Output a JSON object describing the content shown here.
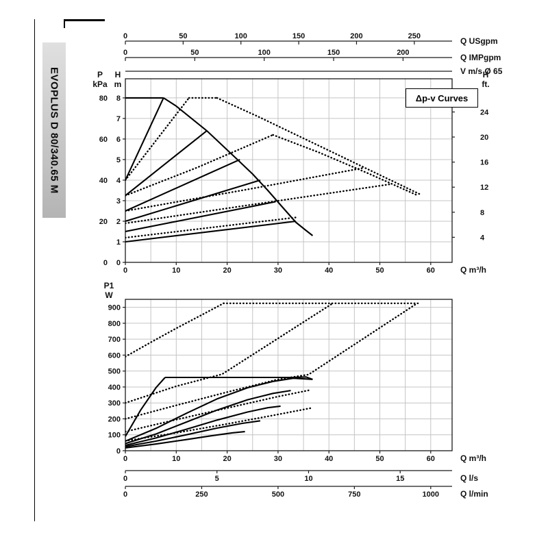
{
  "page": {
    "model_label": "EVOPLUS D 80/340.65 M"
  },
  "colors": {
    "curve": "#000000",
    "grid": "#c4c4c4",
    "frame": "#1a1a1a",
    "text": "#111111"
  },
  "chart_data": [
    {
      "id": "head-flow",
      "type": "line",
      "legend_box": "Δp-v Curves",
      "x_base_unit": "m³/h",
      "x_range": [
        0,
        64.2
      ],
      "y_unit": "m",
      "y_range": [
        0,
        8.93
      ],
      "grid": {
        "x_step": 5,
        "y_step": 1
      },
      "axes": {
        "left_outer": {
          "name_lines": [
            "P",
            "kPa"
          ],
          "unit": "kPa",
          "ticks": [
            0,
            20,
            40,
            60,
            80
          ],
          "m_per_unit": 0.1
        },
        "left_inner": {
          "name_lines": [
            "H",
            "m"
          ],
          "unit": "m",
          "ticks": [
            0,
            1,
            2,
            3,
            4,
            5,
            6,
            7,
            8
          ],
          "m_per_unit": 1
        },
        "right": {
          "name_lines": [
            "H",
            "ft."
          ],
          "unit": "ft",
          "ticks": [
            4,
            8,
            12,
            16,
            20,
            24
          ],
          "m_per_unit": 0.3048
        },
        "bottom": {
          "name": "Q m³/h",
          "ticks": [
            0,
            10,
            20,
            30,
            40,
            50,
            60
          ],
          "base_per_unit": 1
        },
        "top": [
          {
            "name": "Q USgpm",
            "ticks": [
              0,
              50,
              100,
              150,
              200,
              250
            ],
            "base_per_unit": 0.2271
          },
          {
            "name": "Q IMPgpm",
            "ticks": [
              0,
              50,
              100,
              150,
              200
            ],
            "base_per_unit": 0.2728
          },
          {
            "name": "V m/s Ø 65",
            "ticks": [],
            "base_per_unit": 11.94
          }
        ]
      },
      "series": [
        {
          "name": "max-head-plateau",
          "style": "solid",
          "points": [
            [
              0,
              8
            ],
            [
              7.5,
              8
            ]
          ]
        },
        {
          "name": "max-speed-curve",
          "style": "solid",
          "points": [
            [
              7.5,
              8
            ],
            [
              10,
              7.6
            ],
            [
              13,
              7.0
            ],
            [
              16,
              6.4
            ],
            [
              19,
              5.7
            ],
            [
              22,
              5.0
            ],
            [
              25,
              4.3
            ],
            [
              28,
              3.5
            ],
            [
              31,
              2.65
            ],
            [
              33.5,
              1.95
            ],
            [
              35.5,
              1.55
            ],
            [
              36.8,
              1.3
            ]
          ]
        },
        {
          "name": "dpv-set-8m",
          "style": "solid",
          "points": [
            [
              0,
              4
            ],
            [
              7.5,
              8
            ]
          ]
        },
        {
          "name": "dpv-set-6-5m",
          "style": "solid",
          "points": [
            [
              0,
              3.25
            ],
            [
              16,
              6.4
            ]
          ]
        },
        {
          "name": "dpv-set-5m",
          "style": "solid",
          "points": [
            [
              0,
              2.5
            ],
            [
              22.5,
              5.0
            ]
          ]
        },
        {
          "name": "dpv-set-4m",
          "style": "solid",
          "points": [
            [
              0,
              2.0
            ],
            [
              26.5,
              4.0
            ]
          ]
        },
        {
          "name": "dpv-set-3m",
          "style": "solid",
          "points": [
            [
              0,
              1.5
            ],
            [
              29.5,
              2.95
            ]
          ]
        },
        {
          "name": "dpv-set-2m",
          "style": "solid",
          "points": [
            [
              0,
              1.0
            ],
            [
              33.5,
              2.0
            ]
          ]
        },
        {
          "name": "dpv-rise-a",
          "style": "dotted",
          "points": [
            [
              0,
              4
            ],
            [
              12.5,
              8
            ]
          ]
        },
        {
          "name": "dpv-plateau",
          "style": "dotted",
          "points": [
            [
              12.5,
              8
            ],
            [
              18,
              8
            ]
          ]
        },
        {
          "name": "dpv-decline-a",
          "style": "dotted",
          "points": [
            [
              18,
              8
            ],
            [
              26,
              7.1
            ],
            [
              34,
              6.15
            ],
            [
              42,
              5.2
            ],
            [
              50,
              4.25
            ],
            [
              58,
              3.3
            ]
          ]
        },
        {
          "name": "dpv-rise-b",
          "style": "dotted",
          "points": [
            [
              0,
              3.25
            ],
            [
              14,
              4.6
            ],
            [
              29,
              6.2
            ]
          ]
        },
        {
          "name": "dpv-decline-b",
          "style": "dotted",
          "points": [
            [
              29,
              6.2
            ],
            [
              38,
              5.35
            ],
            [
              48,
              4.3
            ],
            [
              57.5,
              3.25
            ]
          ]
        },
        {
          "name": "dpv-rise-c",
          "style": "dotted",
          "points": [
            [
              0,
              2.5
            ],
            [
              24,
              3.55
            ],
            [
              47,
              4.6
            ]
          ]
        },
        {
          "name": "dpv-rise-d",
          "style": "dotted",
          "points": [
            [
              0,
              1.9
            ],
            [
              26,
              2.85
            ],
            [
              52,
              3.8
            ]
          ]
        },
        {
          "name": "dpv-rise-e",
          "style": "dotted",
          "points": [
            [
              0,
              1.2
            ],
            [
              17,
              1.7
            ],
            [
              34,
              2.2
            ]
          ]
        }
      ]
    },
    {
      "id": "power-flow",
      "type": "line",
      "x_base_unit": "m³/h",
      "x_range": [
        0,
        64.2
      ],
      "y_unit": "W",
      "y_range": [
        0,
        950
      ],
      "grid": {
        "x_step": 5,
        "y_step": 100
      },
      "axes": {
        "left": {
          "name_lines": [
            "P1",
            "W"
          ],
          "unit": "W",
          "ticks": [
            0,
            100,
            200,
            300,
            400,
            500,
            600,
            700,
            800,
            900
          ]
        },
        "bottom": [
          {
            "name": "Q m³/h",
            "ticks": [
              0,
              10,
              20,
              30,
              40,
              50,
              60
            ],
            "base_per_unit": 1
          },
          {
            "name": "Q l/s",
            "ticks": [
              0,
              5,
              10,
              15
            ],
            "base_per_unit": 3.6
          },
          {
            "name": "Q l/min",
            "ticks": [
              0,
              250,
              500,
              750,
              1000
            ],
            "base_per_unit": 0.06
          }
        ]
      },
      "series": [
        {
          "name": "p-steep-rise",
          "style": "solid",
          "points": [
            [
              0,
              90
            ],
            [
              3,
              255
            ],
            [
              6,
              395
            ],
            [
              7.8,
              460
            ]
          ]
        },
        {
          "name": "p-max-plateau",
          "style": "solid",
          "points": [
            [
              7.8,
              460
            ],
            [
              20,
              460
            ],
            [
              33,
              460
            ],
            [
              35.5,
              463
            ],
            [
              36.8,
              448
            ]
          ]
        },
        {
          "name": "p-curve-1",
          "style": "solid",
          "points": [
            [
              0,
              60
            ],
            [
              6,
              140
            ],
            [
              12,
              235
            ],
            [
              18,
              325
            ],
            [
              24,
              395
            ],
            [
              29,
              435
            ],
            [
              33,
              455
            ],
            [
              36.8,
              448
            ]
          ]
        },
        {
          "name": "p-curve-2",
          "style": "solid",
          "points": [
            [
              0,
              45
            ],
            [
              6,
              105
            ],
            [
              12,
              180
            ],
            [
              18,
              255
            ],
            [
              24,
              320
            ],
            [
              29,
              360
            ],
            [
              32.5,
              378
            ]
          ]
        },
        {
          "name": "p-curve-3",
          "style": "solid",
          "points": [
            [
              0,
              34
            ],
            [
              6,
              80
            ],
            [
              12,
              135
            ],
            [
              18,
              192
            ],
            [
              24,
              243
            ],
            [
              28,
              270
            ],
            [
              30.5,
              280
            ]
          ]
        },
        {
          "name": "p-curve-4",
          "style": "solid",
          "points": [
            [
              0,
              26
            ],
            [
              6,
              60
            ],
            [
              12,
              100
            ],
            [
              18,
              142
            ],
            [
              23,
              172
            ],
            [
              26.5,
              188
            ]
          ]
        },
        {
          "name": "p-curve-5",
          "style": "solid",
          "points": [
            [
              0,
              18
            ],
            [
              6,
              42
            ],
            [
              12,
              70
            ],
            [
              17,
              94
            ],
            [
              21,
              112
            ],
            [
              23.5,
              120
            ]
          ]
        },
        {
          "name": "p-dotted-rise-max",
          "style": "dotted",
          "points": [
            [
              0,
              590
            ],
            [
              5,
              680
            ],
            [
              10,
              768
            ],
            [
              15,
              852
            ],
            [
              19.3,
              925
            ]
          ]
        },
        {
          "name": "p-dotted-plateau",
          "style": "dotted",
          "points": [
            [
              19.3,
              925
            ],
            [
              57.5,
              925
            ]
          ]
        },
        {
          "name": "p-dotted-a",
          "style": "dotted",
          "points": [
            [
              0,
              300
            ],
            [
              10,
              405
            ],
            [
              19,
              480
            ],
            [
              40.5,
              920
            ]
          ]
        },
        {
          "name": "p-dotted-b",
          "style": "dotted",
          "points": [
            [
              0,
              200
            ],
            [
              10,
              285
            ],
            [
              20,
              368
            ],
            [
              30,
              448
            ],
            [
              36,
              478
            ],
            [
              57,
              918
            ]
          ]
        },
        {
          "name": "p-dotted-c",
          "style": "dotted",
          "points": [
            [
              0,
              120
            ],
            [
              10,
              195
            ],
            [
              20,
              268
            ],
            [
              30,
              340
            ],
            [
              36.5,
              382
            ]
          ]
        },
        {
          "name": "p-dotted-d",
          "style": "dotted",
          "points": [
            [
              0,
              62
            ],
            [
              10,
              112
            ],
            [
              20,
              168
            ],
            [
              30,
              228
            ],
            [
              36.5,
              268
            ]
          ]
        }
      ]
    }
  ]
}
